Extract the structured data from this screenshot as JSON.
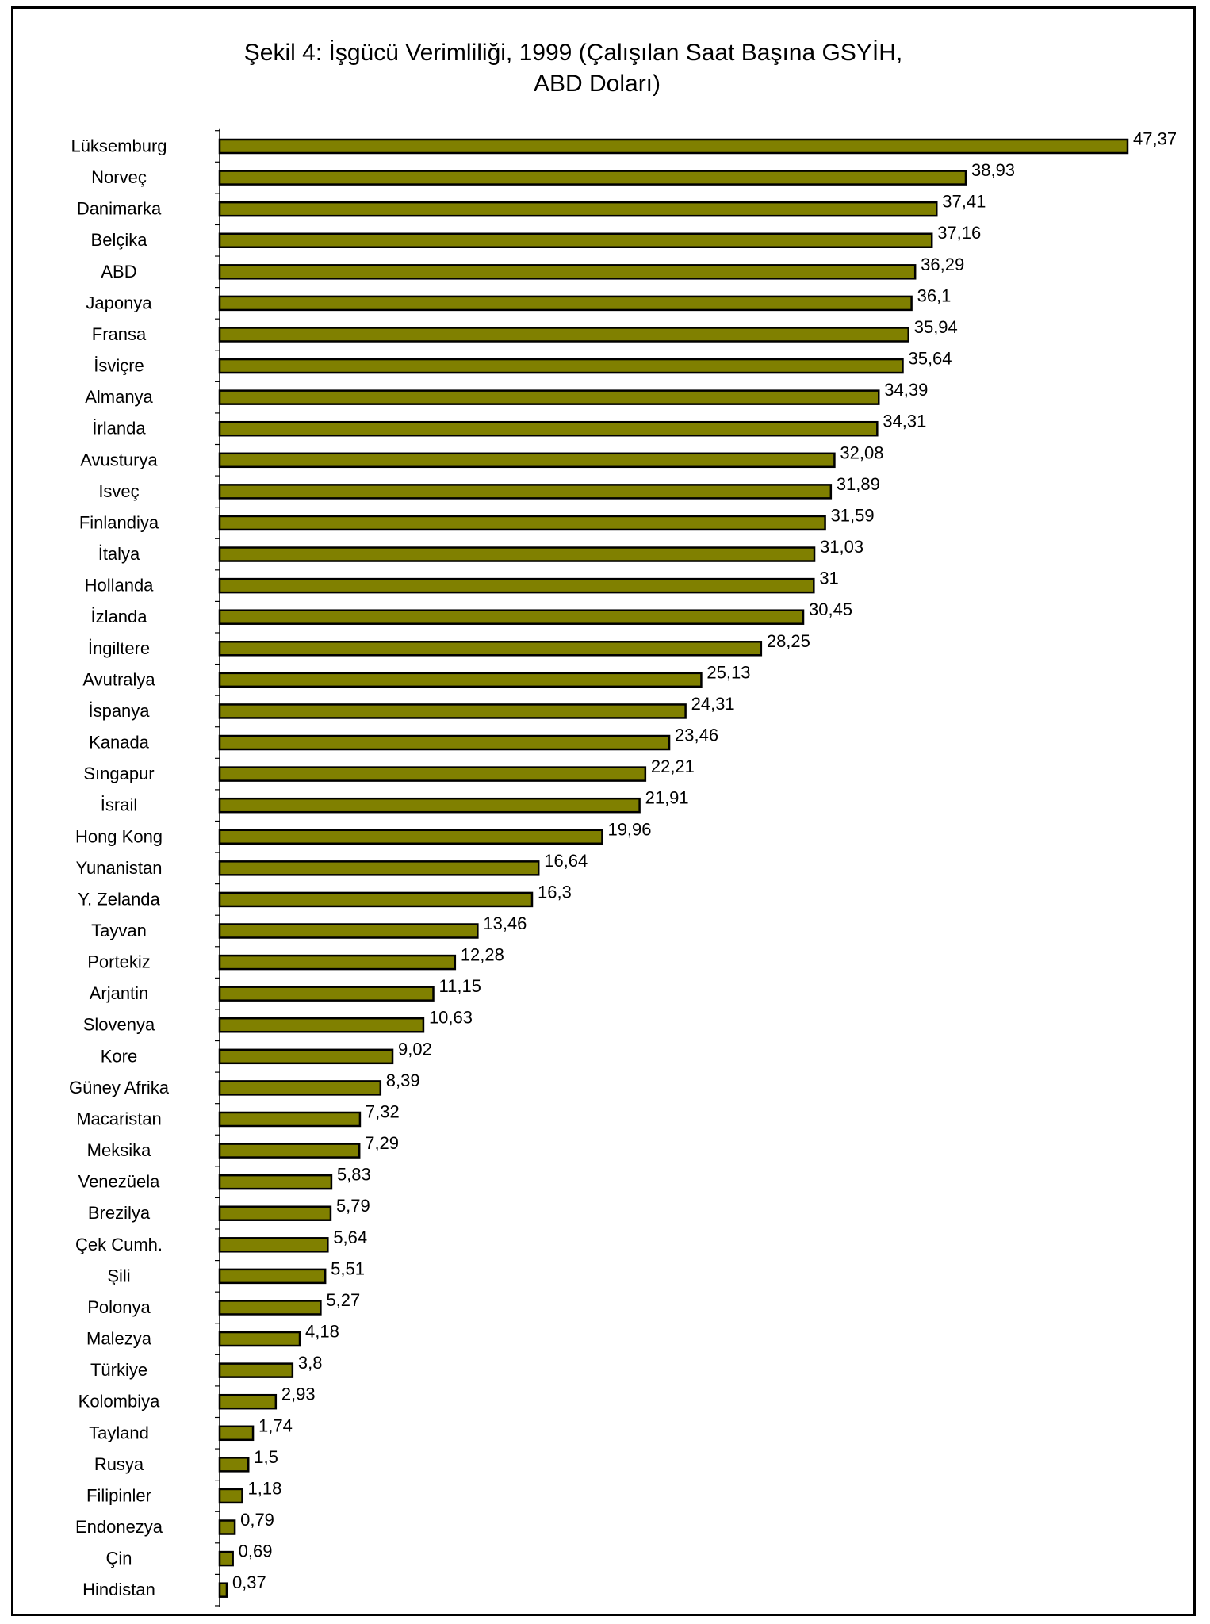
{
  "chart_data": {
    "type": "bar",
    "orientation": "horizontal",
    "title_lines": [
      "Şekil 4: İşgücü Verimliliği, 1999 (Çalışılan Saat Başına GSYİH,",
      "ABD Doları)"
    ],
    "categories": [
      "Lüksemburg",
      "Norveç",
      "Danimarka",
      "Belçika",
      "ABD",
      "Japonya",
      "Fransa",
      "İsviçre",
      "Almanya",
      "İrlanda",
      "Avusturya",
      "Isveç",
      "Finlandiya",
      "İtalya",
      "Hollanda",
      "İzlanda",
      "İngiltere",
      "Avutralya",
      "İspanya",
      "Kanada",
      "Sıngapur",
      "İsrail",
      "Hong Kong",
      "Yunanistan",
      "Y. Zelanda",
      "Tayvan",
      "Portekiz",
      "Arjantin",
      "Slovenya",
      "Kore",
      "Güney Afrika",
      "Macaristan",
      "Meksika",
      "Venezüela",
      "Brezilya",
      "Çek Cumh.",
      "Şili",
      "Polonya",
      "Malezya",
      "Türkiye",
      "Kolombiya",
      "Tayland",
      "Rusya",
      "Filipinler",
      "Endonezya",
      "Çin",
      "Hindistan"
    ],
    "values": [
      47.37,
      38.93,
      37.41,
      37.16,
      36.29,
      36.1,
      35.94,
      35.64,
      34.39,
      34.31,
      32.08,
      31.89,
      31.59,
      31.03,
      31,
      30.45,
      28.25,
      25.13,
      24.31,
      23.46,
      22.21,
      21.91,
      19.96,
      16.64,
      16.3,
      13.46,
      12.28,
      11.15,
      10.63,
      9.02,
      8.39,
      7.32,
      7.29,
      5.83,
      5.79,
      5.64,
      5.51,
      5.27,
      4.18,
      3.8,
      2.93,
      1.74,
      1.5,
      1.18,
      0.79,
      0.69,
      0.37
    ],
    "value_labels": [
      "47,37",
      "38,93",
      "37,41",
      "37,16",
      "36,29",
      "36,1",
      "35,94",
      "35,64",
      "34,39",
      "34,31",
      "32,08",
      "31,89",
      "31,59",
      "31,03",
      "31",
      "30,45",
      "28,25",
      "25,13",
      "24,31",
      "23,46",
      "22,21",
      "21,91",
      "19,96",
      "16,64",
      "16,3",
      "13,46",
      "12,28",
      "11,15",
      "10,63",
      "9,02",
      "8,39",
      "7,32",
      "7,29",
      "5,83",
      "5,79",
      "5,64",
      "5,51",
      "5,27",
      "4,18",
      "3,8",
      "2,93",
      "1,74",
      "1,5",
      "1,18",
      "0,79",
      "0,69",
      "0,37"
    ],
    "xlim": [
      0,
      47.37
    ],
    "bar_color": "#808000",
    "bar_edge_color": "#000000",
    "grid": false,
    "legend": "none"
  }
}
